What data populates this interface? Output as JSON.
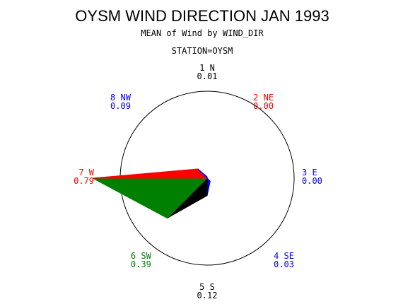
{
  "chart_data": {
    "type": "rose",
    "title": "OYSM WIND DIRECTION JAN 1993",
    "subtitle": "MEAN of Wind by WIND_DIR",
    "station_label": "STATION=OYSM",
    "directions": [
      {
        "label": "1 N",
        "value_text": "0.01",
        "value": 0.01,
        "color": "#000000"
      },
      {
        "label": "2 NE",
        "value_text": "0.00",
        "value": 0.0,
        "color": "#ff0000"
      },
      {
        "label": "3 E",
        "value_text": "0.00",
        "value": 0.0,
        "color": "#0000ff"
      },
      {
        "label": "4 SE",
        "value_text": "0.03",
        "value": 0.03,
        "color": "#0000ff"
      },
      {
        "label": "5 S",
        "value_text": "0.12",
        "value": 0.12,
        "color": "#000000"
      },
      {
        "label": "6 SW",
        "value_text": "0.39",
        "value": 0.39,
        "color": "#008000"
      },
      {
        "label": "7 W",
        "value_text": "0.79",
        "value": 0.79,
        "color": "#ff0000"
      },
      {
        "label": "8 NW",
        "value_text": "0.09",
        "value": 0.09,
        "color": "#0000ff"
      }
    ],
    "scale_max": 0.6
  }
}
